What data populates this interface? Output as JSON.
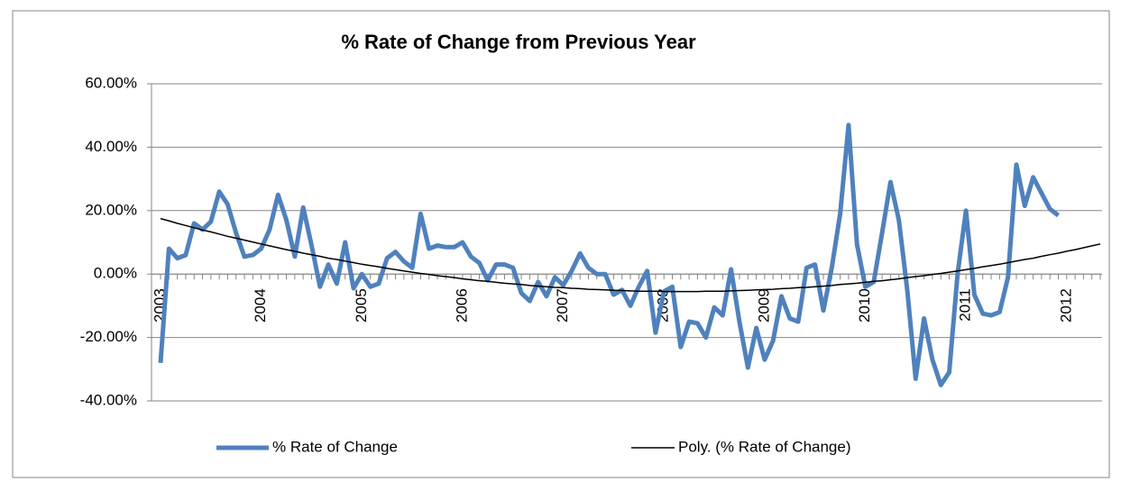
{
  "chart_data": {
    "type": "line",
    "title": "% Rate of Change  from Previous Year",
    "categories": [
      "2003",
      null,
      null,
      null,
      null,
      null,
      null,
      null,
      null,
      null,
      null,
      null,
      "2004",
      null,
      null,
      null,
      null,
      null,
      null,
      null,
      null,
      null,
      null,
      null,
      "2005",
      null,
      null,
      null,
      null,
      null,
      null,
      null,
      null,
      null,
      null,
      null,
      "2006",
      null,
      null,
      null,
      null,
      null,
      null,
      null,
      null,
      null,
      null,
      null,
      "2007",
      null,
      null,
      null,
      null,
      null,
      null,
      null,
      null,
      null,
      null,
      null,
      "2008",
      null,
      null,
      null,
      null,
      null,
      null,
      null,
      null,
      null,
      null,
      null,
      "2009",
      null,
      null,
      null,
      null,
      null,
      null,
      null,
      null,
      null,
      null,
      null,
      "2010",
      null,
      null,
      null,
      null,
      null,
      null,
      null,
      null,
      null,
      null,
      null,
      "2011",
      null,
      null,
      null,
      null,
      null,
      null,
      null,
      null,
      null,
      null,
      null,
      "2012",
      null,
      null,
      null,
      null
    ],
    "series": [
      {
        "name": "% Rate of Change",
        "color": "#4f81bd",
        "width": 5,
        "values": [
          -28,
          8,
          5,
          6,
          16,
          14,
          16.5,
          26,
          22,
          13,
          5.5,
          6,
          8,
          14,
          25,
          17,
          5.5,
          21,
          9,
          -4,
          3,
          -3,
          10,
          -4.5,
          0,
          -4,
          -3,
          5,
          7,
          4,
          2,
          19,
          8,
          9,
          8.5,
          8.5,
          10,
          5.5,
          3.5,
          -2,
          3,
          3,
          2,
          -6,
          -8.5,
          -2.5,
          -7,
          -1,
          -3.5,
          1,
          6.5,
          2,
          0,
          0,
          -6.5,
          -5,
          -10,
          -4,
          1,
          -18.5,
          -5.5,
          -4,
          -23,
          -15,
          -15.5,
          -20,
          -10.5,
          -13,
          1.5,
          -15,
          -29.5,
          -17,
          -27,
          -21,
          -7,
          -14,
          -15,
          2,
          3,
          -11.5,
          2,
          19,
          47,
          9.5,
          -4,
          -2.5,
          13,
          29,
          17,
          -5,
          -33,
          -14,
          -27,
          -35,
          -31,
          0,
          20,
          -6.5,
          -12.5,
          -13,
          -12,
          -1,
          34.5,
          21.5,
          30.5,
          25.5,
          20.5,
          18.5,
          null,
          null,
          null,
          null,
          null
        ]
      },
      {
        "name": "Poly. (% Rate of Change)",
        "color": "#000000",
        "width": 1.5,
        "values": [
          17.5,
          16.8,
          16.0,
          15.3,
          14.6,
          13.9,
          13.3,
          12.6,
          11.9,
          11.3,
          10.7,
          10.1,
          9.5,
          8.9,
          8.3,
          7.7,
          7.2,
          6.6,
          6.1,
          5.6,
          5.0,
          4.6,
          4.1,
          3.6,
          3.1,
          2.7,
          2.3,
          1.8,
          1.4,
          1.0,
          0.6,
          0.2,
          -0.1,
          -0.5,
          -0.8,
          -1.1,
          -1.5,
          -1.8,
          -2.1,
          -2.3,
          -2.6,
          -2.9,
          -3.1,
          -3.3,
          -3.6,
          -3.8,
          -4.0,
          -4.2,
          -4.3,
          -4.5,
          -4.6,
          -4.8,
          -4.9,
          -5.0,
          -5.1,
          -5.2,
          -5.3,
          -5.4,
          -5.4,
          -5.4,
          -5.5,
          -5.5,
          -5.5,
          -5.5,
          -5.5,
          -5.4,
          -5.4,
          -5.4,
          -5.3,
          -5.2,
          -5.1,
          -5.0,
          -4.9,
          -4.8,
          -4.6,
          -4.5,
          -4.3,
          -4.2,
          -4.0,
          -3.8,
          -3.6,
          -3.3,
          -3.1,
          -2.9,
          -2.6,
          -2.3,
          -2.1,
          -1.8,
          -1.5,
          -1.1,
          -0.8,
          -0.5,
          -0.1,
          0.2,
          0.6,
          1.0,
          1.4,
          1.8,
          2.3,
          2.7,
          3.1,
          3.6,
          4.1,
          4.6,
          5.0,
          5.6,
          6.1,
          6.6,
          7.2,
          7.7,
          8.3,
          8.9,
          9.5
        ]
      }
    ],
    "ylim": [
      -40,
      60
    ],
    "yticks": [
      {
        "value": -40,
        "label": "-40.00%"
      },
      {
        "value": -20,
        "label": "-20.00%"
      },
      {
        "value": 0,
        "label": "0.00%"
      },
      {
        "value": 20,
        "label": "20.00%"
      },
      {
        "value": 40,
        "label": "40.00%"
      },
      {
        "value": 60,
        "label": "60.00%"
      }
    ],
    "grid": true,
    "legend": "bottom"
  }
}
